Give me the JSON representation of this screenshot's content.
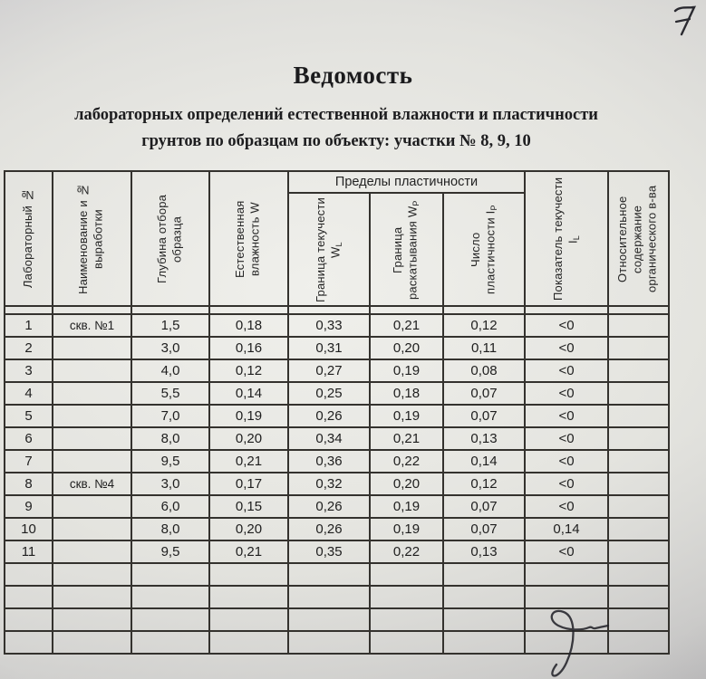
{
  "page": {
    "handwritten_page_number": "7"
  },
  "document": {
    "title": "Ведомость",
    "subtitle_line1": "лабораторных определений естественной влажности и пластичности",
    "subtitle_line2": "грунтов по образцам по объекту: участки № 8, 9, 10"
  },
  "table": {
    "group_header": "Пределы пластичности",
    "columns": [
      {
        "label": "Лабораторный №",
        "sub": ""
      },
      {
        "label": "Наименование и № выработки",
        "sub": ""
      },
      {
        "label": "Глубина отбора образца",
        "sub": ""
      },
      {
        "label": "Естественная влажность W",
        "sub": ""
      },
      {
        "label": "Граница текучести W",
        "sub": "L"
      },
      {
        "label": "Граница раскатывания W",
        "sub": "P"
      },
      {
        "label": "Число пластичности I",
        "sub": "P"
      },
      {
        "label": "Показатель текучести I",
        "sub": "L"
      },
      {
        "label": "Относительное содержание органического в-ва",
        "sub": ""
      }
    ],
    "rows": [
      [
        "1",
        "скв. №1",
        "1,5",
        "0,18",
        "0,33",
        "0,21",
        "0,12",
        "<0",
        ""
      ],
      [
        "2",
        "",
        "3,0",
        "0,16",
        "0,31",
        "0,20",
        "0,11",
        "<0",
        ""
      ],
      [
        "3",
        "",
        "4,0",
        "0,12",
        "0,27",
        "0,19",
        "0,08",
        "<0",
        ""
      ],
      [
        "4",
        "",
        "5,5",
        "0,14",
        "0,25",
        "0,18",
        "0,07",
        "<0",
        ""
      ],
      [
        "5",
        "",
        "7,0",
        "0,19",
        "0,26",
        "0,19",
        "0,07",
        "<0",
        ""
      ],
      [
        "6",
        "",
        "8,0",
        "0,20",
        "0,34",
        "0,21",
        "0,13",
        "<0",
        ""
      ],
      [
        "7",
        "",
        "9,5",
        "0,21",
        "0,36",
        "0,22",
        "0,14",
        "<0",
        ""
      ],
      [
        "8",
        "скв. №4",
        "3,0",
        "0,17",
        "0,32",
        "0,20",
        "0,12",
        "<0",
        ""
      ],
      [
        "9",
        "",
        "6,0",
        "0,15",
        "0,26",
        "0,19",
        "0,07",
        "<0",
        ""
      ],
      [
        "10",
        "",
        "8,0",
        "0,20",
        "0,26",
        "0,19",
        "0,07",
        "0,14",
        ""
      ],
      [
        "11",
        "",
        "9,5",
        "0,21",
        "0,35",
        "0,22",
        "0,13",
        "<0",
        ""
      ]
    ],
    "empty_row_count": 4
  },
  "icons": {
    "page_number": "handwritten-digit-7",
    "signature": "handwritten-signature"
  },
  "colors": {
    "paper": "#e7e7e2",
    "paper_shadow": "#aeadae",
    "table_line": "#34322e",
    "ink": "#1e1e1e"
  }
}
